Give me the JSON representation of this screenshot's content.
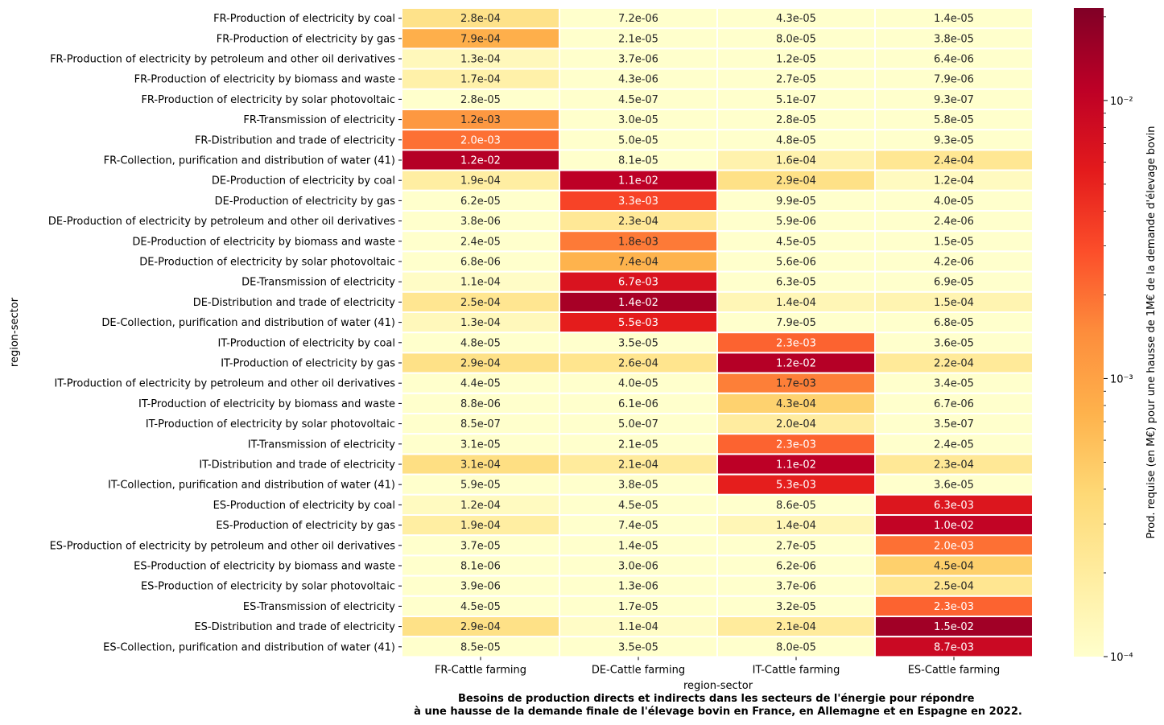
{
  "chart_data": {
    "type": "heatmap",
    "title": "Besoins de production directs et indirects dans les secteurs de l'énergie pour répondre\nà une hausse de la demande finale de l'élevage bovin en France, en Allemagne et en Espagne en 2022.",
    "xlabel": "region-sector",
    "ylabel": "region-sector",
    "colorbar_label": "Prod. requise (en M€) pour une hausse de 1M€ de la demande d'élevage bovin",
    "colormap": "YlOrRd",
    "scale": "log",
    "vmin": 0.0001,
    "vmax": 0.0215,
    "colorbar_ticks": [
      {
        "value": 0.0001,
        "label": "10⁻⁴"
      },
      {
        "value": 0.001,
        "label": "10⁻³"
      },
      {
        "value": 0.01,
        "label": "10⁻²"
      }
    ],
    "columns": [
      "FR-Cattle farming",
      "DE-Cattle farming",
      "IT-Cattle farming",
      "ES-Cattle farming"
    ],
    "rows": [
      "FR-Production of electricity by coal",
      "FR-Production of electricity by gas",
      "FR-Production of electricity by petroleum and other oil derivatives",
      "FR-Production of electricity by biomass and waste",
      "FR-Production of electricity by solar photovoltaic",
      "FR-Transmission of electricity",
      "FR-Distribution and trade of electricity",
      "FR-Collection, purification and distribution of water (41)",
      "DE-Production of electricity by coal",
      "DE-Production of electricity by gas",
      "DE-Production of electricity by petroleum and other oil derivatives",
      "DE-Production of electricity by biomass and waste",
      "DE-Production of electricity by solar photovoltaic",
      "DE-Transmission of electricity",
      "DE-Distribution and trade of electricity",
      "DE-Collection, purification and distribution of water (41)",
      "IT-Production of electricity by coal",
      "IT-Production of electricity by gas",
      "IT-Production of electricity by petroleum and other oil derivatives",
      "IT-Production of electricity by biomass and waste",
      "IT-Production of electricity by solar photovoltaic",
      "IT-Transmission of electricity",
      "IT-Distribution and trade of electricity",
      "IT-Collection, purification and distribution of water (41)",
      "ES-Production of electricity by coal",
      "ES-Production of electricity by gas",
      "ES-Production of electricity by petroleum and other oil derivatives",
      "ES-Production of electricity by biomass and waste",
      "ES-Production of electricity by solar photovoltaic",
      "ES-Transmission of electricity",
      "ES-Distribution and trade of electricity",
      "ES-Collection, purification and distribution of water (41)"
    ],
    "values": [
      [
        "2.8e-04",
        "7.2e-06",
        "4.3e-05",
        "1.4e-05"
      ],
      [
        "7.9e-04",
        "2.1e-05",
        "8.0e-05",
        "3.8e-05"
      ],
      [
        "1.3e-04",
        "3.7e-06",
        "1.2e-05",
        "6.4e-06"
      ],
      [
        "1.7e-04",
        "4.3e-06",
        "2.7e-05",
        "7.9e-06"
      ],
      [
        "2.8e-05",
        "4.5e-07",
        "5.1e-07",
        "9.3e-07"
      ],
      [
        "1.2e-03",
        "3.0e-05",
        "2.8e-05",
        "5.8e-05"
      ],
      [
        "2.0e-03",
        "5.0e-05",
        "4.8e-05",
        "9.3e-05"
      ],
      [
        "1.2e-02",
        "8.1e-05",
        "1.6e-04",
        "2.4e-04"
      ],
      [
        "1.9e-04",
        "1.1e-02",
        "2.9e-04",
        "1.2e-04"
      ],
      [
        "6.2e-05",
        "3.3e-03",
        "9.9e-05",
        "4.0e-05"
      ],
      [
        "3.8e-06",
        "2.3e-04",
        "5.9e-06",
        "2.4e-06"
      ],
      [
        "2.4e-05",
        "1.8e-03",
        "4.5e-05",
        "1.5e-05"
      ],
      [
        "6.8e-06",
        "7.4e-04",
        "5.6e-06",
        "4.2e-06"
      ],
      [
        "1.1e-04",
        "6.7e-03",
        "6.3e-05",
        "6.9e-05"
      ],
      [
        "2.5e-04",
        "1.4e-02",
        "1.4e-04",
        "1.5e-04"
      ],
      [
        "1.3e-04",
        "5.5e-03",
        "7.9e-05",
        "6.8e-05"
      ],
      [
        "4.8e-05",
        "3.5e-05",
        "2.3e-03",
        "3.6e-05"
      ],
      [
        "2.9e-04",
        "2.6e-04",
        "1.2e-02",
        "2.2e-04"
      ],
      [
        "4.4e-05",
        "4.0e-05",
        "1.7e-03",
        "3.4e-05"
      ],
      [
        "8.8e-06",
        "6.1e-06",
        "4.3e-04",
        "6.7e-06"
      ],
      [
        "8.5e-07",
        "5.0e-07",
        "2.0e-04",
        "3.5e-07"
      ],
      [
        "3.1e-05",
        "2.1e-05",
        "2.3e-03",
        "2.4e-05"
      ],
      [
        "3.1e-04",
        "2.1e-04",
        "1.1e-02",
        "2.3e-04"
      ],
      [
        "5.9e-05",
        "3.8e-05",
        "5.3e-03",
        "3.6e-05"
      ],
      [
        "1.2e-04",
        "4.5e-05",
        "8.6e-05",
        "6.3e-03"
      ],
      [
        "1.9e-04",
        "7.4e-05",
        "1.4e-04",
        "1.0e-02"
      ],
      [
        "3.7e-05",
        "1.4e-05",
        "2.7e-05",
        "2.0e-03"
      ],
      [
        "8.1e-06",
        "3.0e-06",
        "6.2e-06",
        "4.5e-04"
      ],
      [
        "3.9e-06",
        "1.3e-06",
        "3.7e-06",
        "2.5e-04"
      ],
      [
        "4.5e-05",
        "1.7e-05",
        "3.2e-05",
        "2.3e-03"
      ],
      [
        "2.9e-04",
        "1.1e-04",
        "2.1e-04",
        "1.5e-02"
      ],
      [
        "8.5e-05",
        "3.5e-05",
        "8.0e-05",
        "8.7e-03"
      ]
    ]
  }
}
